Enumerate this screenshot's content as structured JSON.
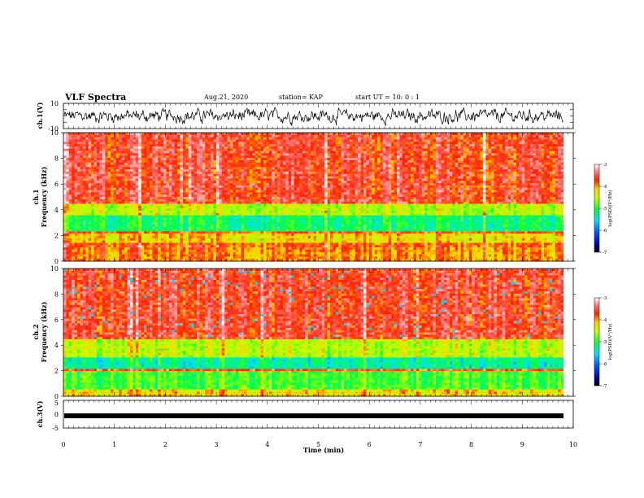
{
  "header": {
    "title": "VLF Spectra",
    "date": "Aug.21, 2020",
    "station": "station= KAP",
    "start": "start  UT  =   10: 0  : 1"
  },
  "colors": {
    "spectro_low": "#000080",
    "spectro_mid1": "#00ffff",
    "spectro_mid2": "#00ff00",
    "spectro_mid3": "#ffff00",
    "spectro_high": "#ff0000",
    "spectro_top": "#ffffff"
  },
  "chart_data": [
    {
      "type": "line",
      "panel": "ch1-waveform",
      "ylabel": "ch.1(V)",
      "ylim": [
        -10,
        10
      ],
      "yticks": [
        "10",
        "-10"
      ],
      "xlim": [
        0,
        10
      ],
      "description_values": "noisy waveform oscillating roughly between -3 and 4 V"
    },
    {
      "type": "heatmap",
      "panel": "ch1-spectrogram",
      "ylabel": "ch.1\nFrequency  (kHz)",
      "ylabel_lines": [
        "ch.1",
        "Frequency  (kHz)"
      ],
      "ylim": [
        0,
        10
      ],
      "yticks": [
        "0",
        "2",
        "4",
        "6",
        "8",
        "10"
      ],
      "xlim": [
        0,
        10
      ],
      "bands_khz": [
        [
          0,
          1,
          "yellow-red"
        ],
        [
          1.5,
          2.2,
          "yellow"
        ],
        [
          2.4,
          3.6,
          "green-cyan"
        ],
        [
          3.6,
          4.5,
          "yellow-green"
        ],
        [
          4.5,
          10,
          "red"
        ]
      ],
      "colorbar": {
        "label": "log(PSD)(V²/Hz)",
        "label_parts": [
          "log(PSD)(V",
          "2",
          "/Hz)"
        ],
        "ticks": [
          "-3",
          "-4",
          "-5",
          "-6",
          "-7"
        ],
        "range": [
          -7,
          -3
        ]
      }
    },
    {
      "type": "heatmap",
      "panel": "ch2-spectrogram",
      "ylabel": "ch.2\nFrequency  (kHz)",
      "ylabel_lines": [
        "ch.2",
        "Frequency  (kHz)"
      ],
      "ylim": [
        0,
        10
      ],
      "yticks": [
        "0",
        "2",
        "4",
        "6",
        "8",
        "10"
      ],
      "xlim": [
        0,
        10
      ],
      "bands_khz": [
        [
          0,
          0.6,
          "yellow"
        ],
        [
          0.6,
          2.0,
          "green"
        ],
        [
          2.2,
          3.0,
          "cyan-green"
        ],
        [
          3.0,
          4.5,
          "yellow-green"
        ],
        [
          4.5,
          10,
          "red"
        ]
      ],
      "colorbar": {
        "label": "log(PSD)(V²/Hz)",
        "label_parts": [
          "log(PSD)(V",
          "2",
          "/Hz)"
        ],
        "ticks": [
          "-3",
          "-4",
          "-5",
          "-6",
          "-7"
        ],
        "range": [
          -7,
          -3
        ]
      }
    },
    {
      "type": "line",
      "panel": "ch3-waveform",
      "ylabel": "ch.3(V)",
      "ylim": [
        -5,
        5
      ],
      "yticks": [
        "5",
        "0",
        "-5"
      ],
      "xlim": [
        0,
        10
      ],
      "xlabel": "Time  (min)",
      "xticks": [
        "0",
        "1",
        "2",
        "3",
        "4",
        "5",
        "6",
        "7",
        "8",
        "9",
        "10"
      ],
      "description_values": "thick flat trace near -1 V"
    }
  ]
}
